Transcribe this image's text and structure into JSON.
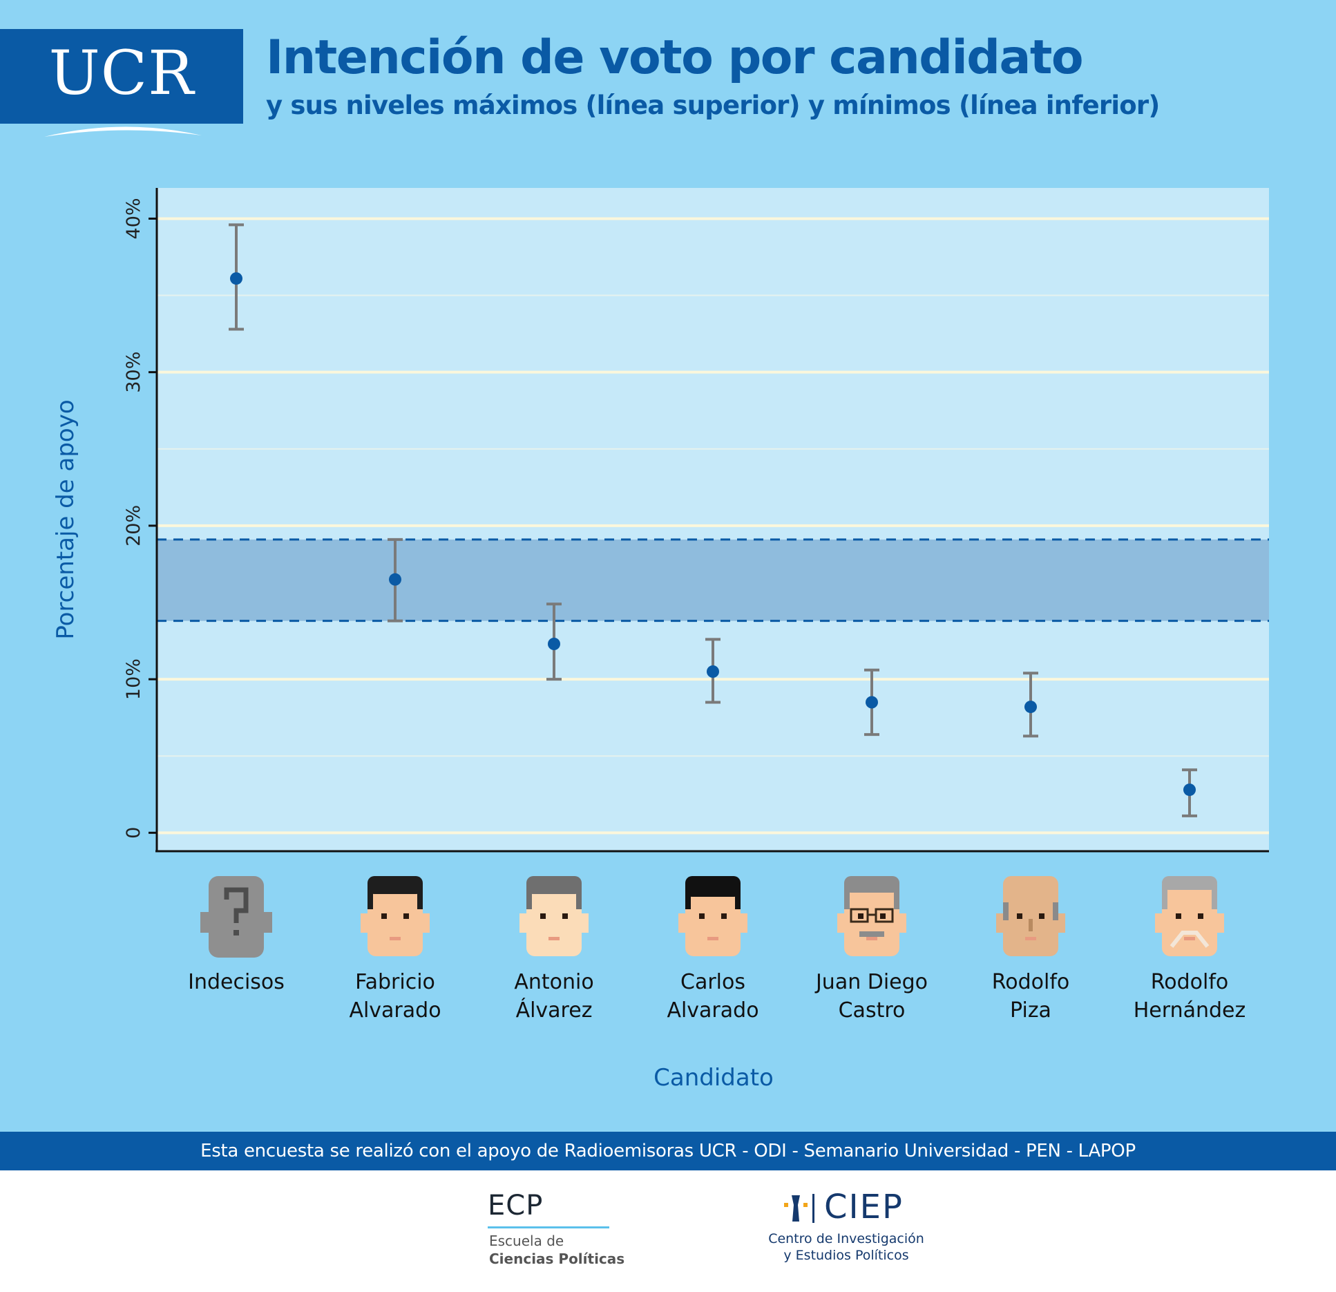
{
  "logo": {
    "text": "UCR"
  },
  "header": {
    "title": "Intención de voto por candidato",
    "subtitle": "y sus niveles máximos (línea superior) y mínimos (línea inferior)"
  },
  "colors": {
    "page_background": "#8dd4f4",
    "plot_background": "#c6e9f9",
    "brand_blue": "#0a5aa5",
    "point": "#0a5aa5",
    "error_bar": "#7a7a7a",
    "gridline": "#fbf7dc",
    "band": "#8fbcdd"
  },
  "chart_data": {
    "type": "scatter",
    "title": "Intención de voto por candidato",
    "subtitle": "y sus niveles máximos (línea superior) y mínimos (línea inferior)",
    "xlabel": "Candidato",
    "ylabel": "Porcentaje de apoyo",
    "ylim": [
      -1.2,
      42
    ],
    "yticks": [
      0,
      10,
      20,
      30,
      40
    ],
    "ytick_labels": [
      "0",
      "10%",
      "20%",
      "30%",
      "40%"
    ],
    "grid": true,
    "categories": [
      {
        "line1": "Indecisos",
        "line2": "",
        "icon": "question-mark-head-icon"
      },
      {
        "line1": "Fabricio",
        "line2": "Alvarado",
        "icon": "fabricio-alvarado-face-icon"
      },
      {
        "line1": "Antonio",
        "line2": "Álvarez",
        "icon": "antonio-alvarez-face-icon"
      },
      {
        "line1": "Carlos",
        "line2": "Alvarado",
        "icon": "carlos-alvarado-face-icon"
      },
      {
        "line1": "Juan Diego",
        "line2": "Castro",
        "icon": "juan-diego-castro-face-icon"
      },
      {
        "line1": "Rodolfo",
        "line2": "Piza",
        "icon": "rodolfo-piza-face-icon"
      },
      {
        "line1": "Rodolfo",
        "line2": "Hernández",
        "icon": "rodolfo-hernandez-face-icon"
      }
    ],
    "values": [
      36.1,
      16.5,
      12.3,
      10.5,
      8.5,
      8.2,
      2.8
    ],
    "upper": [
      39.6,
      19.1,
      14.9,
      12.6,
      10.6,
      10.4,
      4.1
    ],
    "lower": [
      32.8,
      13.8,
      10.0,
      8.5,
      6.4,
      6.3,
      1.1
    ],
    "band": {
      "lower": 13.8,
      "upper": 19.1
    }
  },
  "footer": {
    "text": "Esta encuesta se realizó con el apoyo de Radioemisoras UCR - ODI - Semanario Universidad - PEN - LAPOP"
  },
  "ecp": {
    "acronym": "ECP",
    "line1": "Escuela de",
    "line2": "Ciencias Políticas"
  },
  "ciep": {
    "acronym": "CIEP",
    "line1": "Centro de Investigación",
    "line2": "y Estudios Políticos"
  }
}
